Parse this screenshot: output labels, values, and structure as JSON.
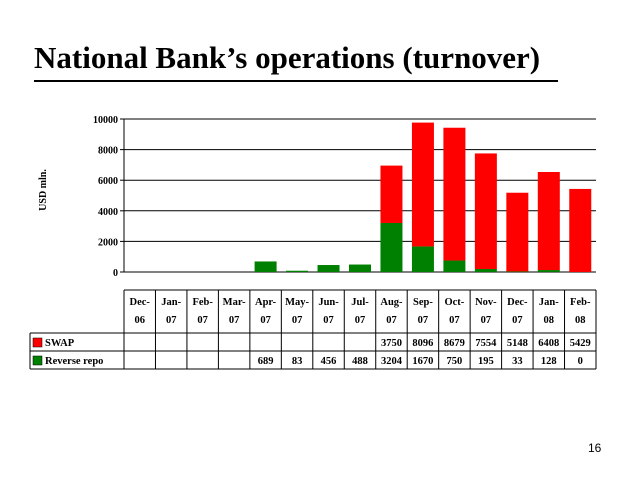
{
  "slide": {
    "title": "National Bank’s operations (turnover)",
    "page_number": "16"
  },
  "chart_data": {
    "type": "bar",
    "stacked": true,
    "title": "",
    "ylabel": "USD mln.",
    "xlabel": "",
    "ylim": [
      0,
      10000
    ],
    "yticks": [
      0,
      2000,
      4000,
      6000,
      8000,
      10000
    ],
    "grid": true,
    "legend": "left of data table",
    "categories": [
      [
        "Dec-",
        "06"
      ],
      [
        "Jan-",
        "07"
      ],
      [
        "Feb-",
        "07"
      ],
      [
        "Mar-",
        "07"
      ],
      [
        "Apr-",
        "07"
      ],
      [
        "May-",
        "07"
      ],
      [
        "Jun-",
        "07"
      ],
      [
        "Jul-",
        "07"
      ],
      [
        "Aug-",
        "07"
      ],
      [
        "Sep-",
        "07"
      ],
      [
        "Oct-",
        "07"
      ],
      [
        "Nov-",
        "07"
      ],
      [
        "Dec-",
        "07"
      ],
      [
        "Jan-",
        "08"
      ],
      [
        "Feb-",
        "08"
      ]
    ],
    "series": [
      {
        "name": "SWAP",
        "color": "#ff0000",
        "values": [
          null,
          null,
          null,
          null,
          null,
          null,
          null,
          null,
          3750,
          8096,
          8679,
          7554,
          5148,
          6408,
          5429
        ]
      },
      {
        "name": "Reverse repo",
        "color": "#008000",
        "values": [
          null,
          null,
          null,
          null,
          689,
          83,
          456,
          488,
          3204,
          1670,
          750,
          195,
          33,
          128,
          0
        ]
      }
    ]
  }
}
